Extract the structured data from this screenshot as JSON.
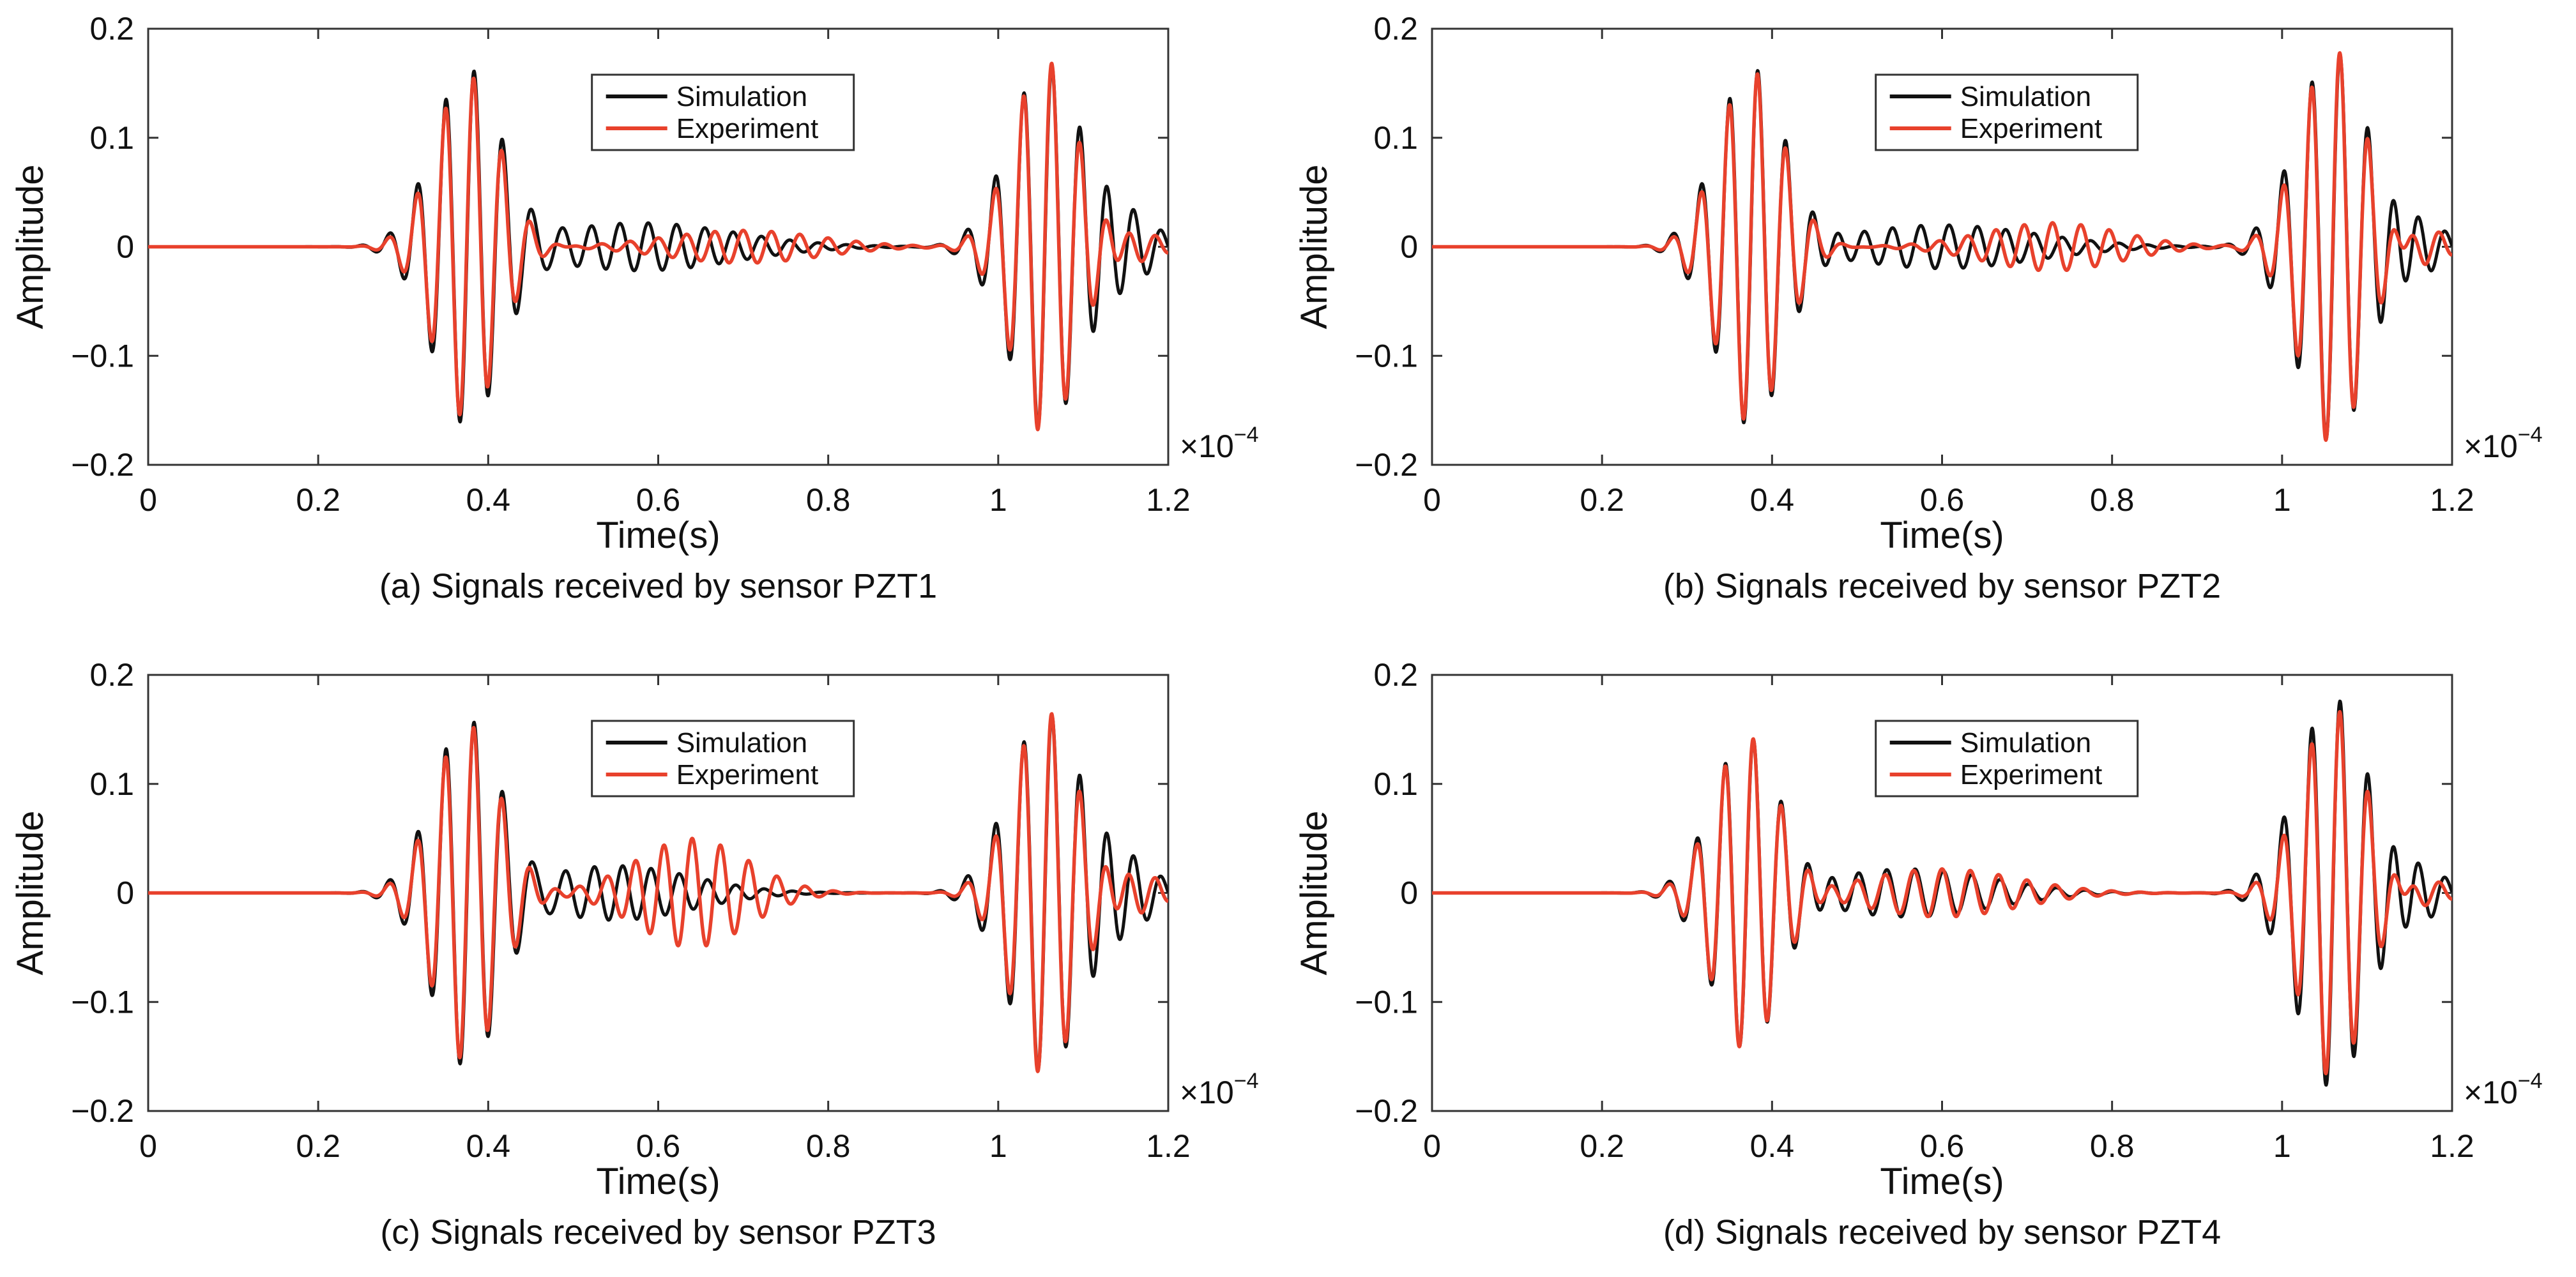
{
  "colors": {
    "simulation": "#111111",
    "experiment": "#e8412c",
    "axis": "#333333"
  },
  "chart_data": [
    {
      "type": "line",
      "caption": "(a) Signals received by sensor PZT1",
      "xlabel": "Time(s)",
      "ylabel": "Amplitude",
      "x_exponent": "×10",
      "x_exponent_power": "−4",
      "xlim": [
        0,
        1.2
      ],
      "ylim": [
        -0.2,
        0.2
      ],
      "xticks": [
        0,
        0.2,
        0.4,
        0.6,
        0.8,
        1,
        1.2
      ],
      "xtick_labels": [
        "0",
        "0.2",
        "0.4",
        "0.6",
        "0.8",
        "1",
        "1.2"
      ],
      "yticks": [
        -0.2,
        -0.1,
        0,
        0.1,
        0.2
      ],
      "ytick_labels": [
        "−0.2",
        "−0.1",
        "0",
        "0.1",
        "0.2"
      ],
      "legend_position": "top-center",
      "series": [
        {
          "name": "Simulation",
          "color": "#111111",
          "packets": [
            {
              "center": 0.375,
              "width": 0.04,
              "amp": 0.162,
              "freq": 30,
              "phase": 0
            },
            {
              "center": 0.58,
              "width": 0.11,
              "amp": 0.022,
              "freq": 30,
              "phase": 0
            },
            {
              "center": 1.055,
              "width": 0.042,
              "amp": 0.168,
              "freq": 30,
              "phase": 0
            },
            {
              "center": 1.15,
              "width": 0.035,
              "amp": 0.03,
              "freq": 30,
              "phase": 0
            }
          ]
        },
        {
          "name": "Experiment",
          "color": "#e8412c",
          "packets": [
            {
              "center": 0.375,
              "width": 0.038,
              "amp": 0.158,
              "freq": 30,
              "phase": 0.02
            },
            {
              "center": 0.7,
              "width": 0.09,
              "amp": 0.015,
              "freq": 30,
              "phase": 0.5
            },
            {
              "center": 1.055,
              "width": 0.038,
              "amp": 0.172,
              "freq": 30,
              "phase": 0.02
            },
            {
              "center": 1.16,
              "width": 0.03,
              "amp": 0.015,
              "freq": 30,
              "phase": 1.0
            }
          ]
        }
      ]
    },
    {
      "type": "line",
      "caption": "(b) Signals received by sensor PZT2",
      "xlabel": "Time(s)",
      "ylabel": "Amplitude",
      "x_exponent": "×10",
      "x_exponent_power": "−4",
      "xlim": [
        0,
        1.2
      ],
      "ylim": [
        -0.2,
        0.2
      ],
      "xticks": [
        0,
        0.2,
        0.4,
        0.6,
        0.8,
        1,
        1.2
      ],
      "xtick_labels": [
        "0",
        "0.2",
        "0.4",
        "0.6",
        "0.8",
        "1",
        "1.2"
      ],
      "yticks": [
        -0.2,
        -0.1,
        0,
        0.1,
        0.2
      ],
      "ytick_labels": [
        "−0.2",
        "−0.1",
        "0",
        "0.1",
        "0.2"
      ],
      "legend_position": "top-center",
      "series": [
        {
          "name": "Simulation",
          "color": "#111111",
          "packets": [
            {
              "center": 0.375,
              "width": 0.04,
              "amp": 0.165,
              "freq": 30,
              "phase": 0
            },
            {
              "center": 0.6,
              "width": 0.11,
              "amp": 0.02,
              "freq": 30,
              "phase": 0
            },
            {
              "center": 1.06,
              "width": 0.042,
              "amp": 0.18,
              "freq": 30,
              "phase": 0
            },
            {
              "center": 1.15,
              "width": 0.035,
              "amp": 0.03,
              "freq": 30,
              "phase": 0
            }
          ]
        },
        {
          "name": "Experiment",
          "color": "#e8412c",
          "packets": [
            {
              "center": 0.375,
              "width": 0.038,
              "amp": 0.162,
              "freq": 30,
              "phase": 0.02
            },
            {
              "center": 0.73,
              "width": 0.08,
              "amp": 0.022,
              "freq": 30,
              "phase": 0.5
            },
            {
              "center": 1.06,
              "width": 0.038,
              "amp": 0.182,
              "freq": 30,
              "phase": 0.02
            },
            {
              "center": 1.16,
              "width": 0.03,
              "amp": 0.02,
              "freq": 30,
              "phase": 1.0
            }
          ]
        }
      ]
    },
    {
      "type": "line",
      "caption": "(c) Signals received by sensor PZT3",
      "xlabel": "Time(s)",
      "ylabel": "Amplitude",
      "x_exponent": "×10",
      "x_exponent_power": "−4",
      "xlim": [
        0,
        1.2
      ],
      "ylim": [
        -0.2,
        0.2
      ],
      "xticks": [
        0,
        0.2,
        0.4,
        0.6,
        0.8,
        1,
        1.2
      ],
      "xtick_labels": [
        "0",
        "0.2",
        "0.4",
        "0.6",
        "0.8",
        "1",
        "1.2"
      ],
      "yticks": [
        -0.2,
        -0.1,
        0,
        0.1,
        0.2
      ],
      "ytick_labels": [
        "−0.2",
        "−0.1",
        "0",
        "0.1",
        "0.2"
      ],
      "legend_position": "top-center",
      "series": [
        {
          "name": "Simulation",
          "color": "#111111",
          "packets": [
            {
              "center": 0.375,
              "width": 0.04,
              "amp": 0.16,
              "freq": 30,
              "phase": 0
            },
            {
              "center": 0.55,
              "width": 0.09,
              "amp": 0.025,
              "freq": 30,
              "phase": 0
            },
            {
              "center": 1.055,
              "width": 0.042,
              "amp": 0.165,
              "freq": 30,
              "phase": 0
            },
            {
              "center": 1.15,
              "width": 0.035,
              "amp": 0.03,
              "freq": 30,
              "phase": 0
            }
          ]
        },
        {
          "name": "Experiment",
          "color": "#e8412c",
          "packets": [
            {
              "center": 0.375,
              "width": 0.038,
              "amp": 0.155,
              "freq": 30,
              "phase": 0.02
            },
            {
              "center": 0.64,
              "width": 0.065,
              "amp": 0.05,
              "freq": 30,
              "phase": 0.5
            },
            {
              "center": 1.055,
              "width": 0.038,
              "amp": 0.168,
              "freq": 30,
              "phase": 0.02
            },
            {
              "center": 1.16,
              "width": 0.03,
              "amp": 0.02,
              "freq": 30,
              "phase": 1.0
            }
          ]
        }
      ]
    },
    {
      "type": "line",
      "caption": "(d) Signals received by sensor PZT4",
      "xlabel": "Time(s)",
      "ylabel": "Amplitude",
      "x_exponent": "×10",
      "x_exponent_power": "−4",
      "xlim": [
        0,
        1.2
      ],
      "ylim": [
        -0.2,
        0.2
      ],
      "xticks": [
        0,
        0.2,
        0.4,
        0.6,
        0.8,
        1,
        1.2
      ],
      "xtick_labels": [
        "0",
        "0.2",
        "0.4",
        "0.6",
        "0.8",
        "1",
        "1.2"
      ],
      "yticks": [
        -0.2,
        -0.1,
        0,
        0.1,
        0.2
      ],
      "ytick_labels": [
        "−0.2",
        "−0.1",
        "0",
        "0.1",
        "0.2"
      ],
      "legend_position": "top-center",
      "series": [
        {
          "name": "Simulation",
          "color": "#111111",
          "packets": [
            {
              "center": 0.37,
              "width": 0.04,
              "amp": 0.145,
              "freq": 30,
              "phase": 0
            },
            {
              "center": 0.56,
              "width": 0.1,
              "amp": 0.022,
              "freq": 30,
              "phase": 0
            },
            {
              "center": 1.06,
              "width": 0.042,
              "amp": 0.18,
              "freq": 30,
              "phase": 0
            },
            {
              "center": 1.15,
              "width": 0.035,
              "amp": 0.03,
              "freq": 30,
              "phase": 0
            }
          ]
        },
        {
          "name": "Experiment",
          "color": "#e8412c",
          "packets": [
            {
              "center": 0.37,
              "width": 0.038,
              "amp": 0.145,
              "freq": 30,
              "phase": 0.02
            },
            {
              "center": 0.6,
              "width": 0.09,
              "amp": 0.022,
              "freq": 30,
              "phase": 0.5
            },
            {
              "center": 1.06,
              "width": 0.038,
              "amp": 0.17,
              "freq": 30,
              "phase": 0.02
            },
            {
              "center": 1.16,
              "width": 0.03,
              "amp": 0.015,
              "freq": 30,
              "phase": 1.0
            }
          ]
        }
      ]
    }
  ]
}
